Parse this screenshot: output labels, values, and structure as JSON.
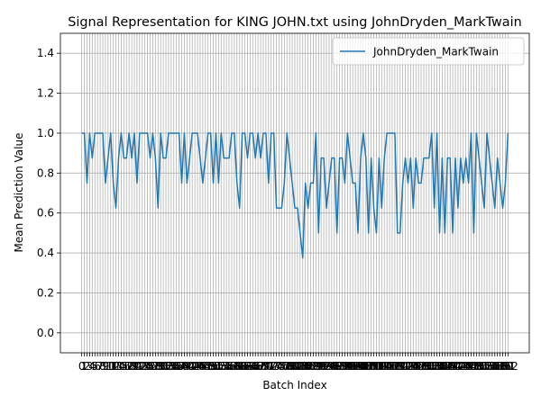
{
  "chart_data": {
    "type": "line",
    "title": "Signal Representation for KING JOHN.txt using JohnDryden_MarkTwain",
    "xlabel": "Batch Index",
    "ylabel": "Mean Prediction Value",
    "x": [
      0,
      1,
      2,
      3,
      4,
      5,
      6,
      7,
      8,
      9,
      10,
      11,
      12,
      13,
      14,
      15,
      16,
      17,
      18,
      19,
      20,
      21,
      22,
      23,
      24,
      25,
      26,
      27,
      28,
      29,
      30,
      31,
      32,
      33,
      34,
      35,
      36,
      37,
      38,
      39,
      40,
      41,
      42,
      43,
      44,
      45,
      46,
      47,
      48,
      49,
      50,
      51,
      52,
      53,
      54,
      55,
      56,
      57,
      58,
      59,
      60,
      61,
      62,
      63,
      64,
      65,
      66,
      67,
      68,
      69,
      70,
      71,
      72,
      73,
      74,
      75,
      76,
      77,
      78,
      79,
      80,
      81,
      82,
      83,
      84,
      85,
      86,
      87,
      88,
      89,
      90,
      91,
      92,
      93,
      94,
      95,
      96,
      97,
      98,
      99,
      100,
      101,
      102,
      103,
      104,
      105,
      106,
      107,
      108,
      109,
      110,
      111,
      112,
      113,
      114,
      115,
      116,
      117,
      118,
      119,
      120,
      121,
      122,
      123,
      124,
      125,
      126,
      127,
      128,
      129,
      130,
      131,
      132,
      133,
      134,
      135,
      136,
      137,
      138,
      139,
      140,
      141,
      142,
      143,
      144,
      145,
      146,
      147,
      148,
      149,
      150,
      151,
      152,
      153,
      154,
      155,
      156,
      157,
      158,
      159,
      160,
      161,
      162
    ],
    "series": [
      {
        "name": "JohnDryden_MarkTwain",
        "color": "#1f77b4",
        "values": [
          1,
          1,
          0.75,
          1,
          0.875,
          1,
          1,
          1,
          1,
          0.75,
          0.875,
          1,
          0.75,
          0.625,
          0.875,
          1,
          0.875,
          0.875,
          1,
          0.875,
          1,
          0.75,
          1,
          1,
          1,
          1,
          0.875,
          1,
          0.875,
          0.625,
          1,
          0.875,
          0.875,
          1,
          1,
          1,
          1,
          1,
          0.75,
          1,
          0.75,
          0.875,
          1,
          1,
          1,
          0.875,
          0.75,
          0.875,
          1,
          1,
          0.75,
          1,
          0.75,
          1,
          0.875,
          0.875,
          0.875,
          1,
          1,
          0.75,
          0.625,
          1,
          1,
          0.875,
          1,
          1,
          0.875,
          1,
          0.875,
          1,
          1,
          0.75,
          1,
          1,
          0.625,
          0.625,
          0.625,
          0.75,
          1,
          0.875,
          0.75,
          0.625,
          0.625,
          0.5,
          0.375,
          0.75,
          0.625,
          0.75,
          0.75,
          1,
          0.5,
          0.875,
          0.875,
          0.625,
          0.75,
          0.875,
          0.875,
          0.5,
          0.875,
          0.875,
          0.75,
          1,
          0.875,
          0.75,
          0.75,
          0.5,
          0.875,
          1,
          0.875,
          0.5,
          0.875,
          0.625,
          0.5,
          0.875,
          0.625,
          0.875,
          1,
          1,
          1,
          1,
          0.5,
          0.5,
          0.75,
          0.875,
          0.75,
          0.875,
          0.625,
          0.875,
          0.75,
          0.75,
          0.875,
          0.875,
          0.875,
          1,
          0.625,
          1,
          0.5,
          0.875,
          0.5,
          0.875,
          0.875,
          0.5,
          0.875,
          0.625,
          0.875,
          0.75,
          0.875,
          0.75,
          1,
          0.5,
          1,
          0.875,
          0.75,
          0.625,
          1,
          0.875,
          0.75,
          0.625,
          0.875,
          0.75,
          0.625,
          0.75,
          1
        ]
      }
    ],
    "xlim": [
      -8.1,
      170.1
    ],
    "xticks": [
      0,
      1,
      2,
      3,
      4,
      5,
      6,
      7,
      8,
      9,
      10,
      11,
      12,
      13,
      14,
      15,
      16,
      17,
      18,
      19,
      20,
      21,
      22,
      23,
      24,
      25,
      26,
      27,
      28,
      29,
      30,
      31,
      32,
      33,
      34,
      35,
      36,
      37,
      38,
      39,
      40,
      41,
      42,
      43,
      44,
      45,
      46,
      47,
      48,
      49,
      50,
      51,
      52,
      53,
      54,
      55,
      56,
      57,
      58,
      59,
      60,
      61,
      62,
      63,
      64,
      65,
      66,
      67,
      68,
      69,
      70,
      71,
      72,
      73,
      74,
      75,
      76,
      77,
      78,
      79,
      80,
      81,
      82,
      83,
      84,
      85,
      86,
      87,
      88,
      89,
      90,
      91,
      92,
      93,
      94,
      95,
      96,
      97,
      98,
      99,
      100,
      101,
      102,
      103,
      104,
      105,
      106,
      107,
      108,
      109,
      110,
      111,
      112,
      113,
      114,
      115,
      116,
      117,
      118,
      119,
      120,
      121,
      122,
      123,
      124,
      125,
      126,
      127,
      128,
      129,
      130,
      131,
      132,
      133,
      134,
      135,
      136,
      137,
      138,
      139,
      140,
      141,
      142,
      143,
      144,
      145,
      146,
      147,
      148,
      149,
      150,
      151,
      152,
      153,
      154,
      155,
      156,
      157,
      158,
      159,
      160,
      161,
      162
    ],
    "ylim": [
      -0.1,
      1.5
    ],
    "yticks": [
      {
        "value": 0,
        "label": "0.0"
      },
      {
        "value": 0.2,
        "label": "0.2"
      },
      {
        "value": 0.4,
        "label": "0.4"
      },
      {
        "value": 0.6,
        "label": "0.6"
      },
      {
        "value": 0.8,
        "label": "0.8"
      },
      {
        "value": 1,
        "label": "1.0"
      },
      {
        "value": 1.2,
        "label": "1.2"
      },
      {
        "value": 1.4,
        "label": "1.4"
      }
    ],
    "grid": true,
    "legend": "upper right"
  }
}
